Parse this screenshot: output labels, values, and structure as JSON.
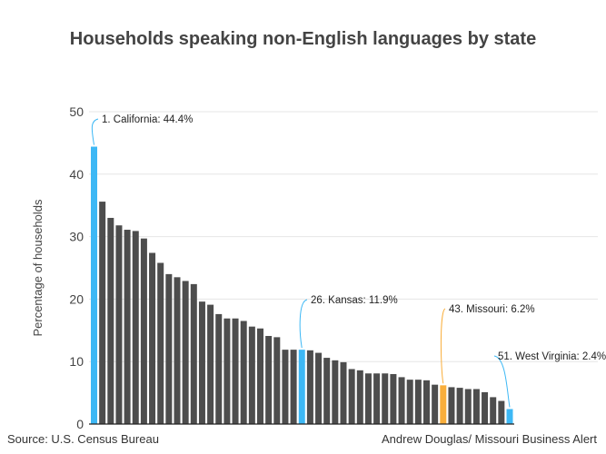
{
  "chart_data": {
    "type": "bar",
    "title": "Households speaking non-English languages by state",
    "ylabel": "Percentage of households",
    "xlabel": "",
    "ylim": [
      0,
      50
    ],
    "yticks": [
      0,
      10,
      20,
      30,
      40,
      50
    ],
    "grid": true,
    "values": [
      44.4,
      35.6,
      33.0,
      31.8,
      31.1,
      30.9,
      29.7,
      27.4,
      25.8,
      24.0,
      23.5,
      22.9,
      22.4,
      19.6,
      19.1,
      17.6,
      16.9,
      16.9,
      16.5,
      15.6,
      15.3,
      14.1,
      13.9,
      11.9,
      11.9,
      11.9,
      11.8,
      11.4,
      10.6,
      10.2,
      9.9,
      8.8,
      8.6,
      8.1,
      8.1,
      8.1,
      8.0,
      7.5,
      7.1,
      7.1,
      7.0,
      6.3,
      6.2,
      5.9,
      5.8,
      5.6,
      5.6,
      5.1,
      4.3,
      3.7,
      2.4
    ],
    "highlights": [
      {
        "rank": 1,
        "label": "1. California: 44.4%",
        "color": "#3db8f5"
      },
      {
        "rank": 26,
        "label": "26. Kansas: 11.9%",
        "color": "#3db8f5"
      },
      {
        "rank": 43,
        "label": "43. Missouri: 6.2%",
        "color": "#f9ae3b"
      },
      {
        "rank": 51,
        "label": "51. West Virginia: 2.4%",
        "color": "#3db8f5"
      }
    ],
    "bar_color": "#4d4d4d"
  },
  "footer": {
    "source": "Source: U.S. Census Bureau",
    "credit": "Andrew Douglas/ Missouri Business Alert"
  }
}
